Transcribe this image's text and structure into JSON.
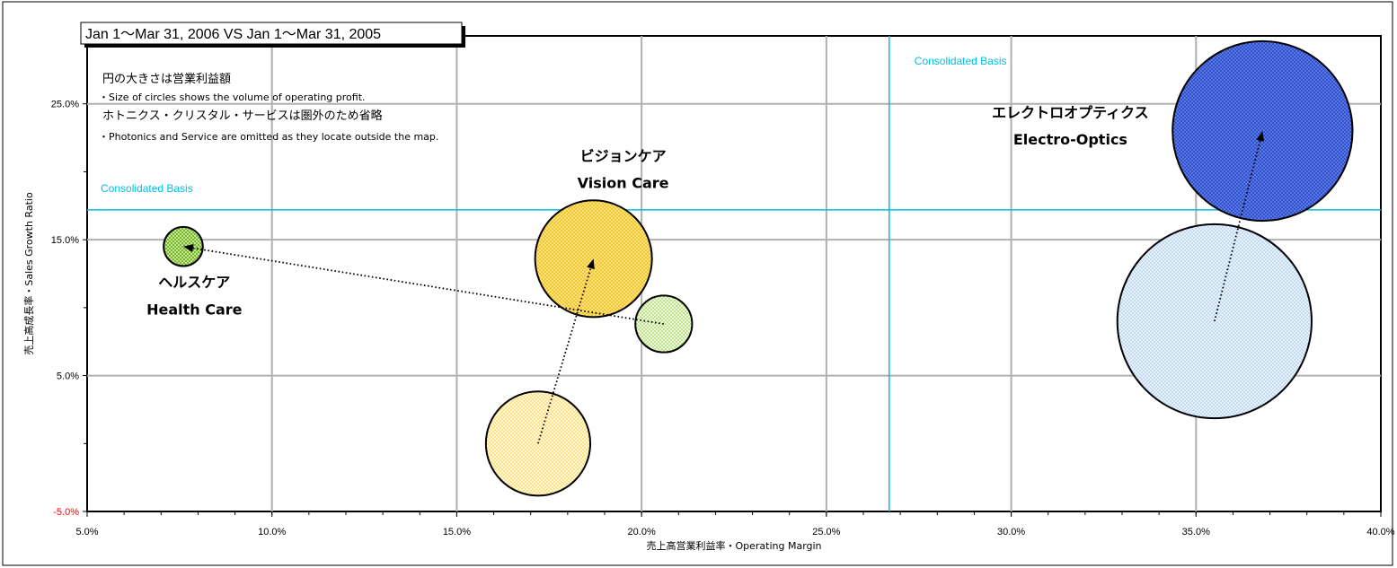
{
  "chart_data": {
    "type": "bubble",
    "title": "Jan 1～Mar 31, 2006 VS Jan 1～Mar 31, 2005",
    "xlabel": "売上高営業利益率・Operating Margin",
    "ylabel": "売上高成長率・Sales Growth Ratio",
    "xlim": [
      0.05,
      0.4
    ],
    "ylim": [
      -0.05,
      0.3
    ],
    "x_ticks": [
      0.05,
      0.1,
      0.15,
      0.2,
      0.25,
      0.3,
      0.35,
      0.4
    ],
    "x_tick_labels": [
      "5.0%",
      "10.0%",
      "15.0%",
      "20.0%",
      "25.0%",
      "30.0%",
      "35.0%",
      "40.0%"
    ],
    "y_ticks": [
      -0.05,
      0.05,
      0.15,
      0.25
    ],
    "y_tick_labels": [
      "-5.0%",
      "5.0%",
      "15.0%",
      "25.0%"
    ],
    "y_minor_ticks": [
      0.0,
      0.1,
      0.2
    ],
    "grid": true,
    "notes": [
      "円の大きさは営業利益額",
      "・Size of circles shows the volume of operating profit.",
      "ホトニクス・クリスタル・サービスは圏外のため省略",
      "・Photonics and Service are omitted as  they locate outside the map."
    ],
    "reference_lines": {
      "label": "Consolidated Basis",
      "x": 0.267,
      "y": 0.172,
      "color": "#00c0e0"
    },
    "series": [
      {
        "name_jp": "ヘルスケア",
        "name_en": "Health Care",
        "color": "#9bd24a",
        "points": [
          {
            "period": "2005",
            "x": 0.206,
            "y": 0.088,
            "size": 2.1
          },
          {
            "period": "2006",
            "x": 0.076,
            "y": 0.145,
            "size": 1.0
          }
        ]
      },
      {
        "name_jp": "ビジョンケア",
        "name_en": "Vision Care",
        "color": "#ffd24a",
        "points": [
          {
            "period": "2005",
            "x": 0.172,
            "y": 0.0,
            "size": 7.1
          },
          {
            "period": "2006",
            "x": 0.187,
            "y": 0.136,
            "size": 8.9
          }
        ]
      },
      {
        "name_jp": "エレクトロオプティクス",
        "name_en": "Electro-Optics",
        "color": "#4060e0",
        "color_2005": "#c6dcf8",
        "points": [
          {
            "period": "2005",
            "x": 0.355,
            "y": 0.09,
            "size": 24.6
          },
          {
            "period": "2006",
            "x": 0.368,
            "y": 0.23,
            "size": 21.1
          }
        ]
      }
    ]
  }
}
